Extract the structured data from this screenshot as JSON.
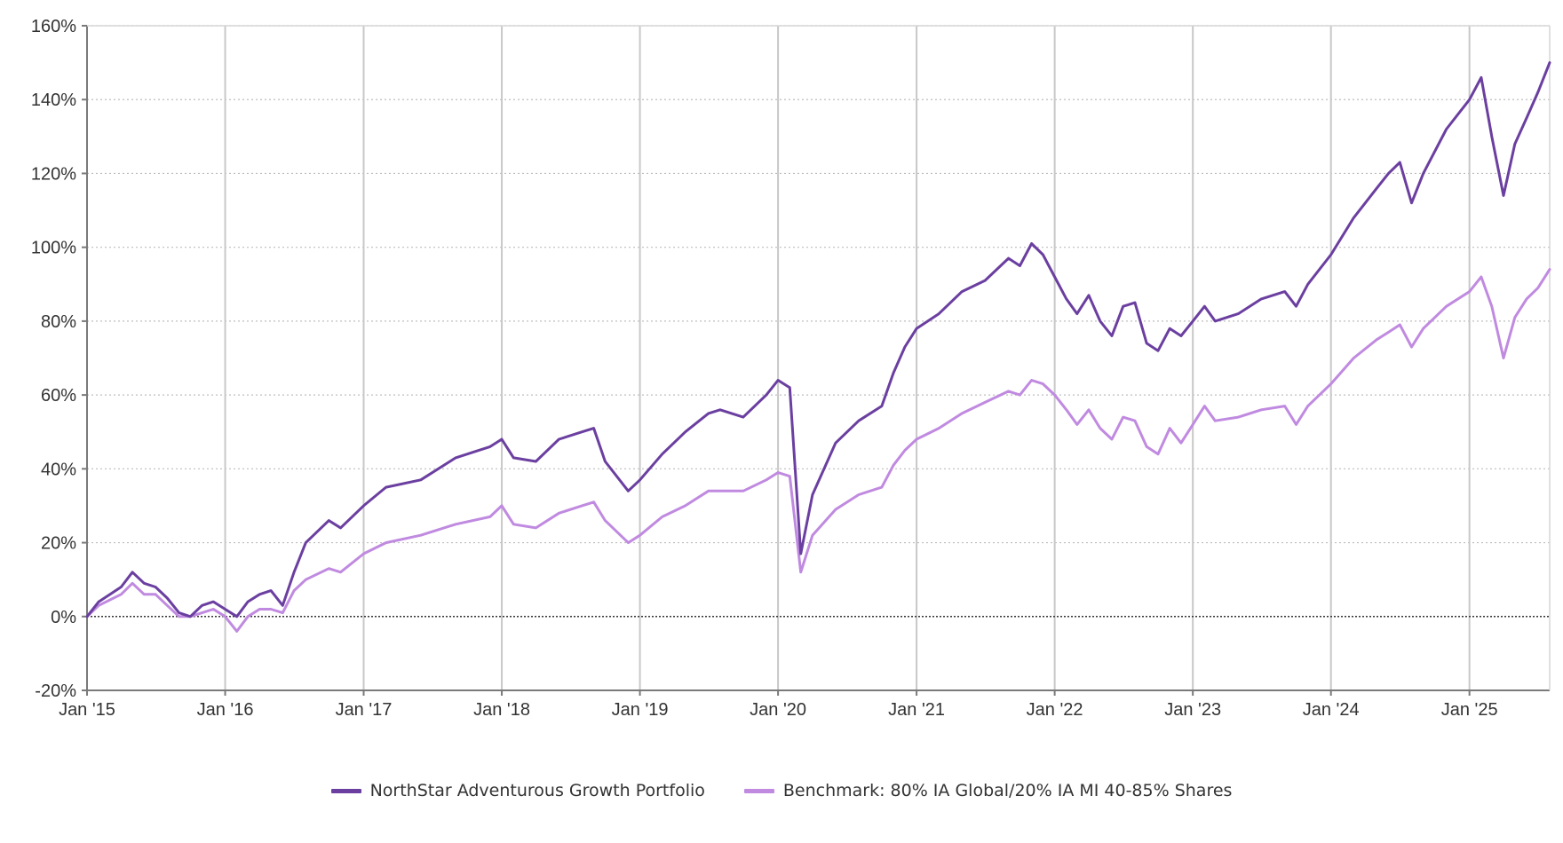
{
  "colors": {
    "portfolio": "#6b3fa0",
    "benchmark": "#c08ae0",
    "grid": "#bdbdbd",
    "axis": "#7a7a7a",
    "zero_line": "#333333"
  },
  "chart_data": {
    "type": "line",
    "grid": true,
    "legend_position": "bottom-center",
    "ylim": [
      -20,
      160
    ],
    "yticks": [
      160,
      140,
      120,
      100,
      80,
      60,
      40,
      20,
      0,
      -20
    ],
    "ytick_labels": [
      "160%",
      "140%",
      "120%",
      "100%",
      "80%",
      "60%",
      "40%",
      "20%",
      "0%",
      "-20%"
    ],
    "xlim": [
      "2015-01-01",
      "2025-08-01"
    ],
    "xticks": [
      "2015-01-01",
      "2016-01-01",
      "2017-01-01",
      "2018-01-01",
      "2019-01-01",
      "2020-01-01",
      "2021-01-01",
      "2022-01-01",
      "2023-01-01",
      "2024-01-01",
      "2025-01-01"
    ],
    "xtick_labels": [
      "Jan '15",
      "Jan '16",
      "Jan '17",
      "Jan '18",
      "Jan '19",
      "Jan '20",
      "Jan '21",
      "Jan '22",
      "Jan '23",
      "Jan '24",
      "Jan '25"
    ],
    "series": [
      {
        "name": "NorthStar Adventurous Growth Portfolio",
        "points": [
          [
            "2015-01-01",
            0
          ],
          [
            "2015-02-01",
            4
          ],
          [
            "2015-04-01",
            8
          ],
          [
            "2015-05-01",
            12
          ],
          [
            "2015-06-01",
            9
          ],
          [
            "2015-07-01",
            8
          ],
          [
            "2015-08-01",
            5
          ],
          [
            "2015-09-01",
            1
          ],
          [
            "2015-10-01",
            0
          ],
          [
            "2015-11-01",
            3
          ],
          [
            "2015-12-01",
            4
          ],
          [
            "2016-01-01",
            2
          ],
          [
            "2016-02-01",
            0
          ],
          [
            "2016-03-01",
            4
          ],
          [
            "2016-04-01",
            6
          ],
          [
            "2016-05-01",
            7
          ],
          [
            "2016-06-01",
            3
          ],
          [
            "2016-07-01",
            12
          ],
          [
            "2016-08-01",
            20
          ],
          [
            "2016-10-01",
            26
          ],
          [
            "2016-11-01",
            24
          ],
          [
            "2017-01-01",
            30
          ],
          [
            "2017-03-01",
            35
          ],
          [
            "2017-06-01",
            37
          ],
          [
            "2017-09-01",
            43
          ],
          [
            "2017-12-01",
            46
          ],
          [
            "2018-01-01",
            48
          ],
          [
            "2018-02-01",
            43
          ],
          [
            "2018-04-01",
            42
          ],
          [
            "2018-06-01",
            48
          ],
          [
            "2018-08-01",
            50
          ],
          [
            "2018-09-01",
            51
          ],
          [
            "2018-10-01",
            42
          ],
          [
            "2018-12-01",
            34
          ],
          [
            "2019-01-01",
            37
          ],
          [
            "2019-03-01",
            44
          ],
          [
            "2019-05-01",
            50
          ],
          [
            "2019-07-01",
            55
          ],
          [
            "2019-08-01",
            56
          ],
          [
            "2019-10-01",
            54
          ],
          [
            "2019-12-01",
            60
          ],
          [
            "2020-01-01",
            64
          ],
          [
            "2020-02-01",
            62
          ],
          [
            "2020-03-01",
            17
          ],
          [
            "2020-04-01",
            33
          ],
          [
            "2020-06-01",
            47
          ],
          [
            "2020-08-01",
            53
          ],
          [
            "2020-10-01",
            57
          ],
          [
            "2020-11-01",
            66
          ],
          [
            "2020-12-01",
            73
          ],
          [
            "2021-01-01",
            78
          ],
          [
            "2021-03-01",
            82
          ],
          [
            "2021-05-01",
            88
          ],
          [
            "2021-07-01",
            91
          ],
          [
            "2021-09-01",
            97
          ],
          [
            "2021-10-01",
            95
          ],
          [
            "2021-11-01",
            101
          ],
          [
            "2021-12-01",
            98
          ],
          [
            "2022-01-01",
            92
          ],
          [
            "2022-02-01",
            86
          ],
          [
            "2022-03-01",
            82
          ],
          [
            "2022-04-01",
            87
          ],
          [
            "2022-05-01",
            80
          ],
          [
            "2022-06-01",
            76
          ],
          [
            "2022-07-01",
            84
          ],
          [
            "2022-08-01",
            85
          ],
          [
            "2022-09-01",
            74
          ],
          [
            "2022-10-01",
            72
          ],
          [
            "2022-11-01",
            78
          ],
          [
            "2022-12-01",
            76
          ],
          [
            "2023-01-01",
            80
          ],
          [
            "2023-02-01",
            84
          ],
          [
            "2023-03-01",
            80
          ],
          [
            "2023-05-01",
            82
          ],
          [
            "2023-07-01",
            86
          ],
          [
            "2023-09-01",
            88
          ],
          [
            "2023-10-01",
            84
          ],
          [
            "2023-11-01",
            90
          ],
          [
            "2024-01-01",
            98
          ],
          [
            "2024-03-01",
            108
          ],
          [
            "2024-05-01",
            116
          ],
          [
            "2024-06-01",
            120
          ],
          [
            "2024-07-01",
            123
          ],
          [
            "2024-08-01",
            112
          ],
          [
            "2024-09-01",
            120
          ],
          [
            "2024-11-01",
            132
          ],
          [
            "2025-01-01",
            140
          ],
          [
            "2025-02-01",
            146
          ],
          [
            "2025-03-01",
            130
          ],
          [
            "2025-04-01",
            114
          ],
          [
            "2025-05-01",
            128
          ],
          [
            "2025-06-01",
            135
          ],
          [
            "2025-07-01",
            142
          ],
          [
            "2025-08-01",
            150
          ]
        ]
      },
      {
        "name": "Benchmark: 80% IA Global/20% IA MI 40-85% Shares",
        "points": [
          [
            "2015-01-01",
            0
          ],
          [
            "2015-02-01",
            3
          ],
          [
            "2015-04-01",
            6
          ],
          [
            "2015-05-01",
            9
          ],
          [
            "2015-06-01",
            6
          ],
          [
            "2015-07-01",
            6
          ],
          [
            "2015-08-01",
            3
          ],
          [
            "2015-09-01",
            0
          ],
          [
            "2015-10-01",
            0
          ],
          [
            "2015-11-01",
            1
          ],
          [
            "2015-12-01",
            2
          ],
          [
            "2016-01-01",
            0
          ],
          [
            "2016-02-01",
            -4
          ],
          [
            "2016-03-01",
            0
          ],
          [
            "2016-04-01",
            2
          ],
          [
            "2016-05-01",
            2
          ],
          [
            "2016-06-01",
            1
          ],
          [
            "2016-07-01",
            7
          ],
          [
            "2016-08-01",
            10
          ],
          [
            "2016-10-01",
            13
          ],
          [
            "2016-11-01",
            12
          ],
          [
            "2017-01-01",
            17
          ],
          [
            "2017-03-01",
            20
          ],
          [
            "2017-06-01",
            22
          ],
          [
            "2017-09-01",
            25
          ],
          [
            "2017-12-01",
            27
          ],
          [
            "2018-01-01",
            30
          ],
          [
            "2018-02-01",
            25
          ],
          [
            "2018-04-01",
            24
          ],
          [
            "2018-06-01",
            28
          ],
          [
            "2018-08-01",
            30
          ],
          [
            "2018-09-01",
            31
          ],
          [
            "2018-10-01",
            26
          ],
          [
            "2018-12-01",
            20
          ],
          [
            "2019-01-01",
            22
          ],
          [
            "2019-03-01",
            27
          ],
          [
            "2019-05-01",
            30
          ],
          [
            "2019-07-01",
            34
          ],
          [
            "2019-08-01",
            34
          ],
          [
            "2019-10-01",
            34
          ],
          [
            "2019-12-01",
            37
          ],
          [
            "2020-01-01",
            39
          ],
          [
            "2020-02-01",
            38
          ],
          [
            "2020-03-01",
            12
          ],
          [
            "2020-04-01",
            22
          ],
          [
            "2020-06-01",
            29
          ],
          [
            "2020-08-01",
            33
          ],
          [
            "2020-10-01",
            35
          ],
          [
            "2020-11-01",
            41
          ],
          [
            "2020-12-01",
            45
          ],
          [
            "2021-01-01",
            48
          ],
          [
            "2021-03-01",
            51
          ],
          [
            "2021-05-01",
            55
          ],
          [
            "2021-07-01",
            58
          ],
          [
            "2021-09-01",
            61
          ],
          [
            "2021-10-01",
            60
          ],
          [
            "2021-11-01",
            64
          ],
          [
            "2021-12-01",
            63
          ],
          [
            "2022-01-01",
            60
          ],
          [
            "2022-02-01",
            56
          ],
          [
            "2022-03-01",
            52
          ],
          [
            "2022-04-01",
            56
          ],
          [
            "2022-05-01",
            51
          ],
          [
            "2022-06-01",
            48
          ],
          [
            "2022-07-01",
            54
          ],
          [
            "2022-08-01",
            53
          ],
          [
            "2022-09-01",
            46
          ],
          [
            "2022-10-01",
            44
          ],
          [
            "2022-11-01",
            51
          ],
          [
            "2022-12-01",
            47
          ],
          [
            "2023-01-01",
            52
          ],
          [
            "2023-02-01",
            57
          ],
          [
            "2023-03-01",
            53
          ],
          [
            "2023-05-01",
            54
          ],
          [
            "2023-07-01",
            56
          ],
          [
            "2023-09-01",
            57
          ],
          [
            "2023-10-01",
            52
          ],
          [
            "2023-11-01",
            57
          ],
          [
            "2024-01-01",
            63
          ],
          [
            "2024-03-01",
            70
          ],
          [
            "2024-05-01",
            75
          ],
          [
            "2024-06-01",
            77
          ],
          [
            "2024-07-01",
            79
          ],
          [
            "2024-08-01",
            73
          ],
          [
            "2024-09-01",
            78
          ],
          [
            "2024-11-01",
            84
          ],
          [
            "2025-01-01",
            88
          ],
          [
            "2025-02-01",
            92
          ],
          [
            "2025-03-01",
            84
          ],
          [
            "2025-04-01",
            70
          ],
          [
            "2025-05-01",
            81
          ],
          [
            "2025-06-01",
            86
          ],
          [
            "2025-07-01",
            89
          ],
          [
            "2025-08-01",
            94
          ]
        ]
      }
    ]
  }
}
